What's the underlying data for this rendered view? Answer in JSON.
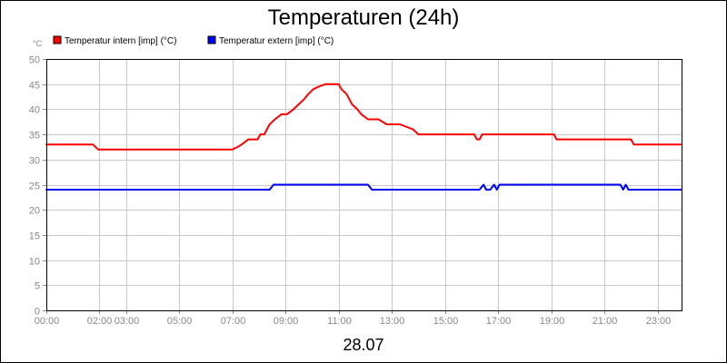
{
  "chart_data": {
    "type": "line",
    "title": "Temperaturen (24h)",
    "ylabel": "°C",
    "xlabel": "28.07",
    "ylim": [
      0,
      50
    ],
    "yticks": [
      0,
      5,
      10,
      15,
      20,
      25,
      30,
      35,
      40,
      45,
      50
    ],
    "xlim": [
      0,
      23.9
    ],
    "xticks": [
      {
        "x": 0,
        "label": "00:00"
      },
      {
        "x": 2,
        "label": "02:00"
      },
      {
        "x": 3,
        "label": "03:00"
      },
      {
        "x": 5,
        "label": "05:00"
      },
      {
        "x": 7,
        "label": "07:00"
      },
      {
        "x": 9,
        "label": "09:00"
      },
      {
        "x": 11,
        "label": "11:00"
      },
      {
        "x": 13,
        "label": "13:00"
      },
      {
        "x": 15,
        "label": "15:00"
      },
      {
        "x": 17,
        "label": "17:00"
      },
      {
        "x": 19,
        "label": "19:00"
      },
      {
        "x": 21,
        "label": "21:00"
      },
      {
        "x": 23,
        "label": "23:00"
      }
    ],
    "grid": true,
    "legend_position": "top-left",
    "series": [
      {
        "name": "Temperatur intern [imp] (°C)",
        "color": "#ff0000",
        "x": [
          0,
          1.75,
          1.95,
          7.0,
          7.2,
          7.35,
          7.6,
          7.95,
          8.05,
          8.2,
          8.3,
          8.4,
          8.5,
          8.6,
          8.85,
          9.05,
          9.3,
          9.5,
          9.7,
          9.85,
          10.05,
          10.25,
          10.5,
          11.0,
          11.1,
          11.3,
          11.5,
          11.7,
          11.85,
          12.1,
          12.5,
          12.8,
          13.3,
          13.8,
          14.0,
          16.1,
          16.2,
          16.3,
          16.4,
          19.1,
          19.2,
          22.0,
          22.1,
          23.9
        ],
        "y": [
          33,
          33,
          32,
          32,
          32.5,
          33,
          34,
          34,
          35,
          35,
          36,
          37,
          37.5,
          38,
          39,
          39,
          40,
          41,
          42,
          43,
          44,
          44.5,
          45,
          45,
          44,
          43,
          41,
          40,
          39,
          38,
          38,
          37,
          37,
          36,
          35,
          35,
          34,
          34,
          35,
          35,
          34,
          34,
          33,
          33
        ]
      },
      {
        "name": "Temperatur extern [imp] (°C)",
        "color": "#0000ff",
        "x": [
          0,
          8.4,
          8.55,
          12.1,
          12.25,
          16.3,
          16.45,
          16.55,
          16.7,
          16.85,
          16.95,
          17.05,
          17.1,
          21.6,
          21.7,
          21.8,
          21.9,
          23.9
        ],
        "y": [
          24,
          24,
          25,
          25,
          24,
          24,
          25,
          24,
          24,
          25,
          24,
          25,
          25,
          25,
          24,
          25,
          24,
          24
        ]
      }
    ]
  }
}
